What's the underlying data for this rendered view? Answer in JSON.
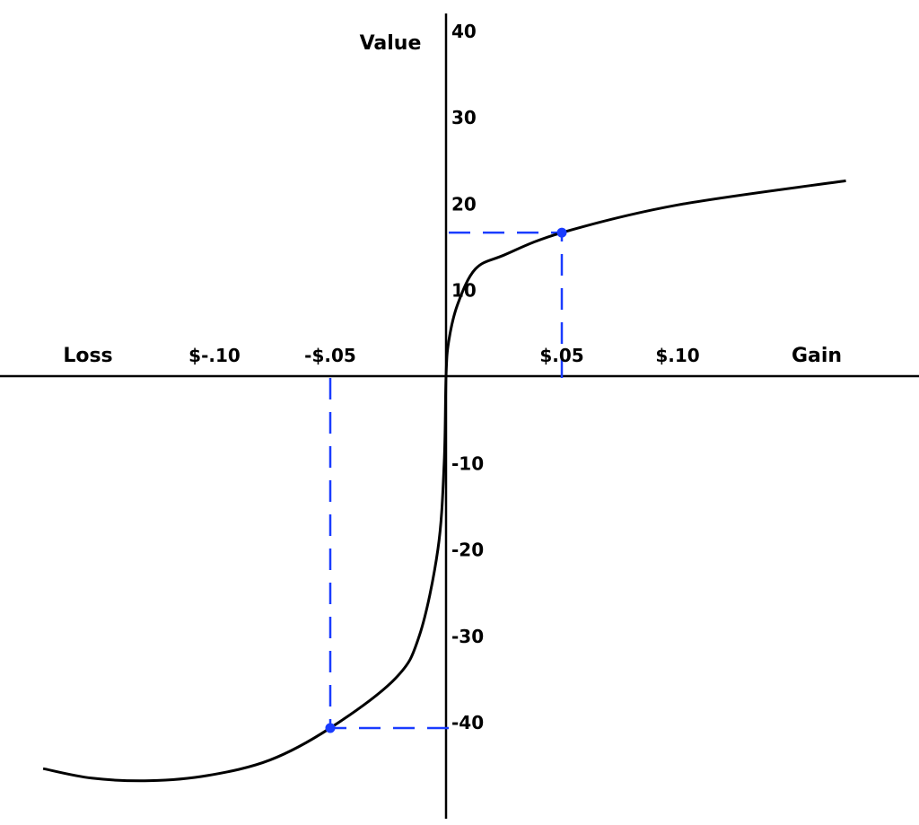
{
  "chart_data": {
    "type": "line",
    "title": "",
    "xlabel_left": "Loss",
    "xlabel_right": "Gain",
    "ylabel": "Value",
    "xlim": [
      -0.19,
      0.2
    ],
    "ylim": [
      -51,
      42
    ],
    "grid": false,
    "x_ticks": [
      {
        "value": -0.1,
        "label": "$-.10"
      },
      {
        "value": -0.05,
        "label": "-$.05"
      },
      {
        "value": 0.05,
        "label": "$.05"
      },
      {
        "value": 0.1,
        "label": "$.10"
      }
    ],
    "y_ticks": [
      {
        "value": 40,
        "label": "40"
      },
      {
        "value": 30,
        "label": "30"
      },
      {
        "value": 20,
        "label": "20"
      },
      {
        "value": 10,
        "label": "10"
      },
      {
        "value": -10,
        "label": "-10"
      },
      {
        "value": -20,
        "label": "-20"
      },
      {
        "value": -30,
        "label": "-30"
      },
      {
        "value": -40,
        "label": "-40"
      }
    ],
    "curve": {
      "color": "#000000",
      "x": [
        -0.174,
        -0.153,
        -0.128,
        -0.103,
        -0.076,
        -0.05,
        -0.022,
        -0.0115,
        -0.0035,
        -0.0008,
        0,
        0.0012,
        0.005,
        0.0127,
        0.025,
        0.05,
        0.1,
        0.1727
      ],
      "y": [
        -45.4,
        -46.5,
        -46.8,
        -46.2,
        -44.4,
        -40.7,
        -35.0,
        -30.0,
        -20.0,
        -10.0,
        0,
        4.1,
        8.3,
        12.4,
        14.0,
        16.6,
        19.8,
        22.6
      ]
    },
    "highlight_points": {
      "color": "#1a3cff",
      "points": [
        {
          "x": 0.05,
          "y": 16.6
        },
        {
          "x": -0.05,
          "y": -40.7
        }
      ]
    }
  }
}
